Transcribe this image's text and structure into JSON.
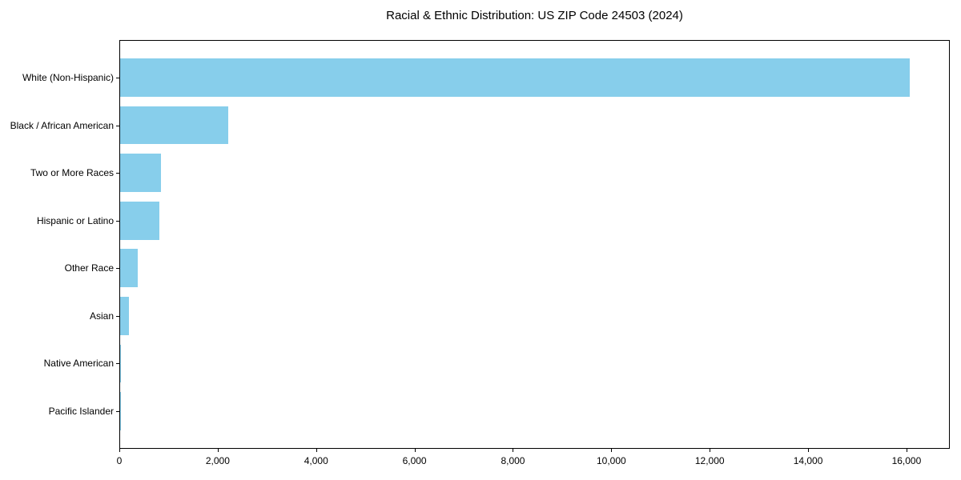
{
  "title": "Racial & Ethnic Distribution: US ZIP Code 24503 (2024)",
  "chart_data": {
    "type": "bar",
    "orientation": "horizontal",
    "title": "Racial & Ethnic Distribution: US ZIP Code 24503 (2024)",
    "xlabel": "",
    "ylabel": "",
    "categories": [
      "White (Non-Hispanic)",
      "Black / African American",
      "Two or More Races",
      "Hispanic or Latino",
      "Other Race",
      "Asian",
      "Native American",
      "Pacific Islander"
    ],
    "values": [
      16050,
      2200,
      830,
      795,
      350,
      180,
      15,
      5
    ],
    "xlim": [
      0,
      16880
    ],
    "x_ticks": [
      0,
      2000,
      4000,
      6000,
      8000,
      10000,
      12000,
      14000,
      16000
    ],
    "x_tick_labels": [
      "0",
      "2,000",
      "4,000",
      "6,000",
      "8,000",
      "10,000",
      "12,000",
      "14,000",
      "16,000"
    ],
    "bar_color": "#87CEEB",
    "grid": false,
    "legend": null
  },
  "colors": {
    "background": "#ffffff",
    "bar": "#87CEEB",
    "axis": "#000000",
    "text": "#000000"
  }
}
